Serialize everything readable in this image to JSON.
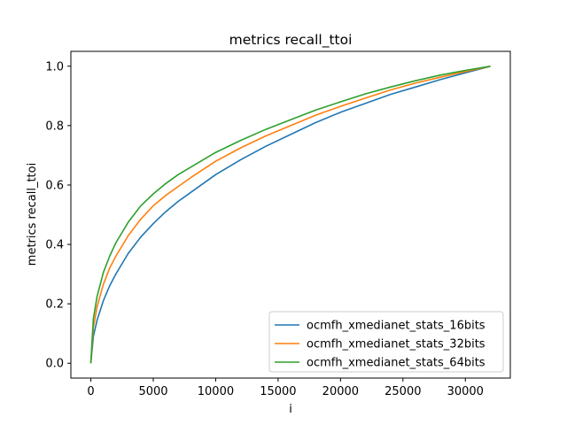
{
  "chart_data": {
    "type": "line",
    "title": "metrics recall_ttoi",
    "xlabel": "i",
    "ylabel": "metrics recall_ttoi",
    "xlim": [
      -1600,
      33600
    ],
    "ylim": [
      -0.05,
      1.05
    ],
    "xticks": [
      0,
      5000,
      10000,
      15000,
      20000,
      25000,
      30000
    ],
    "xtick_labels": [
      "0",
      "5000",
      "10000",
      "15000",
      "20000",
      "25000",
      "30000"
    ],
    "yticks": [
      0.0,
      0.2,
      0.4,
      0.6,
      0.8,
      1.0
    ],
    "ytick_labels": [
      "0.0",
      "0.2",
      "0.4",
      "0.6",
      "0.8",
      "1.0"
    ],
    "grid": false,
    "legend_position": "lower-right",
    "series": [
      {
        "name": "ocmfh_xmedianet_stats_16bits",
        "color": "#1f77b4",
        "x": [
          0,
          200,
          500,
          1000,
          1500,
          2000,
          3000,
          4000,
          5000,
          6000,
          7000,
          8000,
          10000,
          12000,
          14000,
          16000,
          18000,
          20000,
          22000,
          24000,
          26000,
          28000,
          30000,
          32000
        ],
        "y": [
          0.0,
          0.09,
          0.145,
          0.21,
          0.26,
          0.3,
          0.37,
          0.425,
          0.47,
          0.51,
          0.545,
          0.575,
          0.635,
          0.685,
          0.73,
          0.77,
          0.81,
          0.845,
          0.875,
          0.905,
          0.93,
          0.955,
          0.978,
          1.0
        ]
      },
      {
        "name": "ocmfh_xmedianet_stats_32bits",
        "color": "#ff7f0e",
        "x": [
          0,
          200,
          500,
          1000,
          1500,
          2000,
          3000,
          4000,
          5000,
          6000,
          7000,
          8000,
          10000,
          12000,
          14000,
          16000,
          18000,
          20000,
          22000,
          24000,
          26000,
          28000,
          30000,
          32000
        ],
        "y": [
          0.0,
          0.12,
          0.19,
          0.265,
          0.32,
          0.36,
          0.43,
          0.485,
          0.53,
          0.565,
          0.595,
          0.625,
          0.68,
          0.725,
          0.765,
          0.8,
          0.835,
          0.865,
          0.893,
          0.92,
          0.943,
          0.963,
          0.982,
          1.0
        ]
      },
      {
        "name": "ocmfh_xmedianet_stats_64bits",
        "color": "#2ca02c",
        "x": [
          0,
          200,
          500,
          1000,
          1500,
          2000,
          3000,
          4000,
          5000,
          6000,
          7000,
          8000,
          10000,
          12000,
          14000,
          16000,
          18000,
          20000,
          22000,
          24000,
          26000,
          28000,
          30000,
          32000
        ],
        "y": [
          0.0,
          0.15,
          0.225,
          0.305,
          0.36,
          0.405,
          0.475,
          0.53,
          0.57,
          0.605,
          0.635,
          0.66,
          0.71,
          0.75,
          0.787,
          0.82,
          0.852,
          0.88,
          0.907,
          0.93,
          0.951,
          0.97,
          0.986,
          1.0
        ]
      }
    ]
  }
}
